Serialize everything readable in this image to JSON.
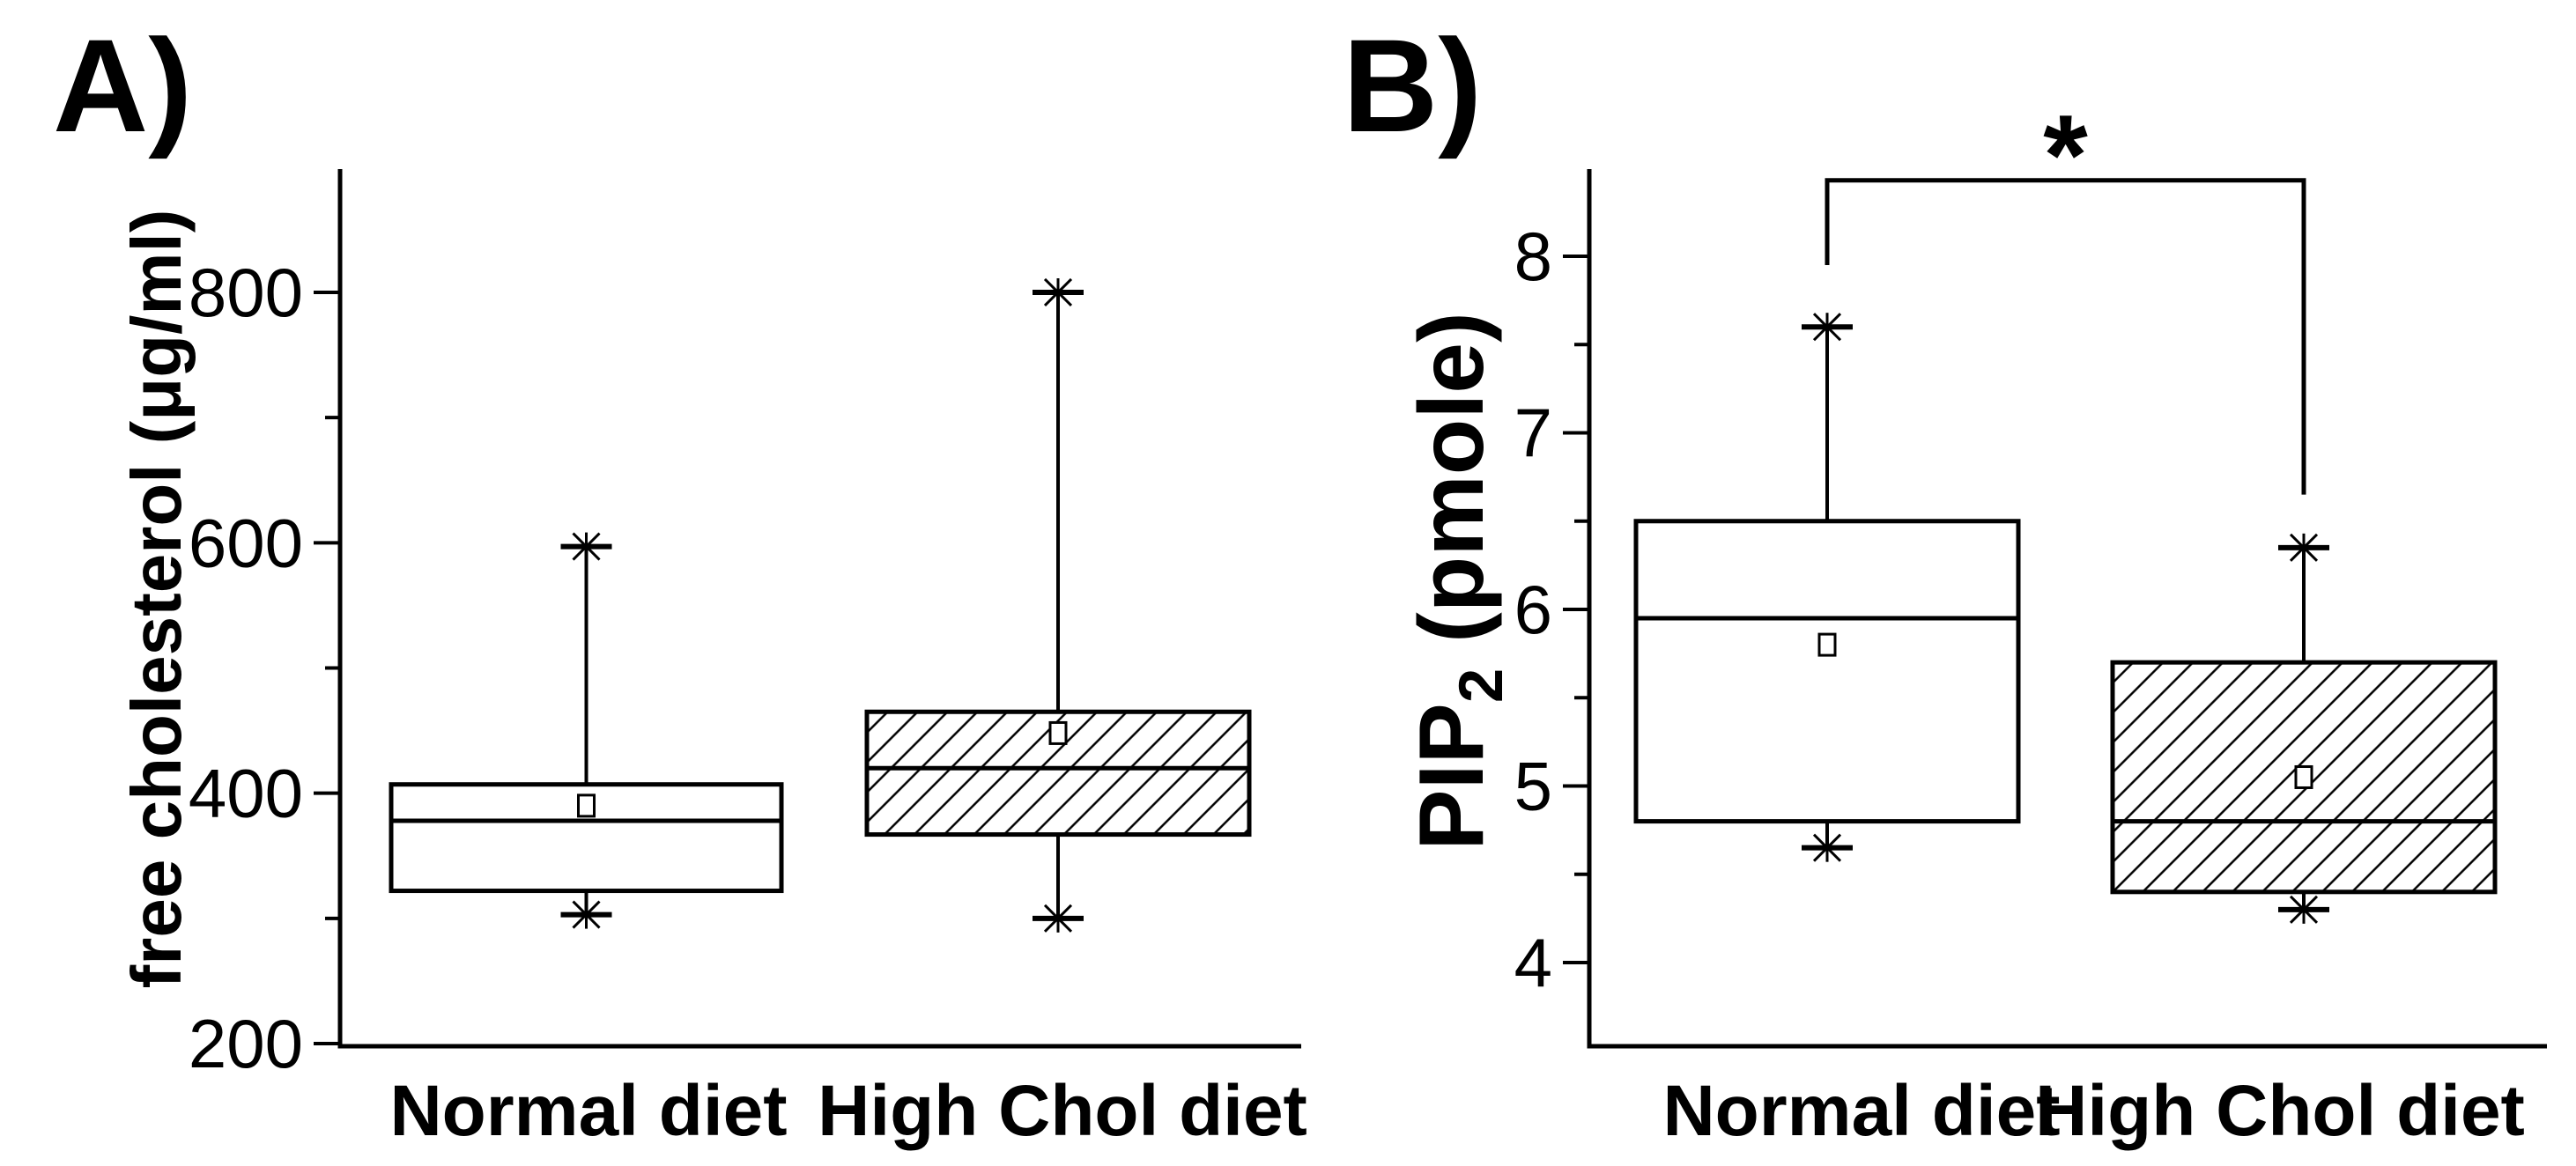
{
  "figure": {
    "background": "#ffffff",
    "ink_color": "#000000"
  },
  "labels": {
    "panel_a": "A)",
    "panel_b": "B)",
    "ylabel_a": "free cholesterol (μg/ml)",
    "pip_main": "PIP",
    "pip_sub": "2",
    "pip_unit": " (pmole)"
  },
  "chart_data": [
    {
      "type": "box",
      "panel": "A",
      "title": "A)",
      "ylabel": "free cholesterol (μg/ml)",
      "xlabel": "",
      "categories": [
        "Normal diet",
        "High Chol diet"
      ],
      "ylim": [
        195,
        900
      ],
      "y_major_ticks": [
        200,
        400,
        600,
        800
      ],
      "y_minor_ticks": [
        300,
        500,
        700
      ],
      "grid": false,
      "legend": false,
      "boxes": [
        {
          "category": "Normal diet",
          "hatched": false,
          "whisker_low": 303,
          "q1": 322,
          "median": 378,
          "mean": 390,
          "q3": 407,
          "whisker_high": 597
        },
        {
          "category": "High Chol diet",
          "hatched": true,
          "whisker_low": 300,
          "q1": 367,
          "median": 420,
          "mean": 448,
          "q3": 465,
          "whisker_high": 800
        }
      ]
    },
    {
      "type": "box",
      "panel": "B",
      "title": "B)",
      "ylabel": "PIP₂ (pmole)",
      "xlabel": "",
      "categories": [
        "Normal diet",
        "High Chol diet"
      ],
      "ylim": [
        3.5,
        8.5
      ],
      "y_major_ticks": [
        4,
        5,
        6,
        7,
        8
      ],
      "y_minor_ticks": [
        4.5,
        5.5,
        6.5,
        7.5
      ],
      "grid": false,
      "legend": false,
      "boxes": [
        {
          "category": "Normal diet",
          "hatched": false,
          "whisker_low": 4.65,
          "q1": 4.8,
          "median": 5.95,
          "mean": 5.8,
          "q3": 6.5,
          "whisker_high": 7.6
        },
        {
          "category": "High Chol diet",
          "hatched": true,
          "whisker_low": 4.3,
          "q1": 4.4,
          "median": 4.8,
          "mean": 5.05,
          "q3": 5.7,
          "whisker_high": 6.35
        }
      ],
      "significance": {
        "label": "*",
        "between": [
          "Normal diet",
          "High Chol diet"
        ],
        "bar_value": 8.43,
        "left_arm_bottom": 7.95,
        "right_arm_bottom": 6.65
      }
    }
  ]
}
